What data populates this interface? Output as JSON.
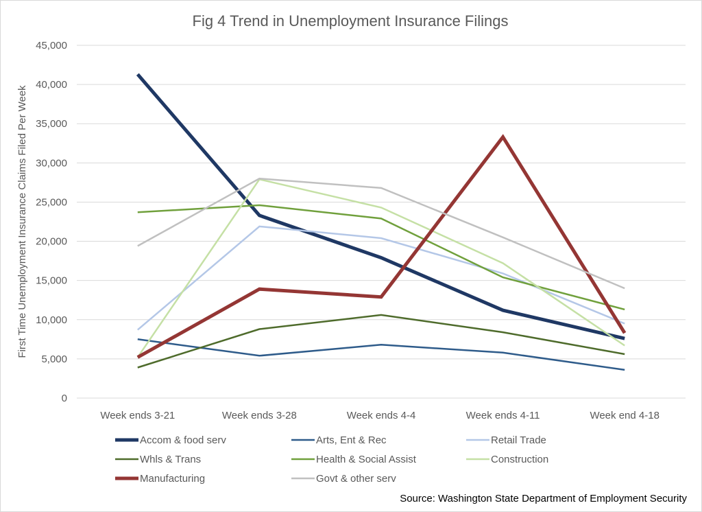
{
  "chart_data": {
    "type": "line",
    "title": "Fig 4 Trend in Unemployment Insurance Filings",
    "xlabel": "",
    "ylabel": "First Time Unemployment Insurance Claims Filed Per Week",
    "categories": [
      "Week ends 3-21",
      "Week ends 3-28",
      "Week ends 4-4",
      "Week ends 4-11",
      "Week end 4-18"
    ],
    "ylim": [
      0,
      45000
    ],
    "yticks": [
      0,
      5000,
      10000,
      15000,
      20000,
      25000,
      30000,
      35000,
      40000,
      45000
    ],
    "ytick_labels": [
      "0",
      "5,000",
      "10,000",
      "15,000",
      "20,000",
      "25,000",
      "30,000",
      "35,000",
      "40,000",
      "45,000"
    ],
    "grid": true,
    "legend_position": "bottom",
    "series": [
      {
        "name": "Accom & food serv",
        "color": "#1f3864",
        "width": 5,
        "values": [
          41300,
          23300,
          17900,
          11200,
          7600
        ]
      },
      {
        "name": "Arts, Ent & Rec",
        "color": "#2e5b8a",
        "width": 2.5,
        "values": [
          7500,
          5400,
          6800,
          5800,
          3600
        ]
      },
      {
        "name": "Retail Trade",
        "color": "#b4c7e7",
        "width": 2.5,
        "values": [
          8700,
          21900,
          20400,
          15900,
          9500
        ]
      },
      {
        "name": "Whls & Trans",
        "color": "#4e6b2b",
        "width": 2.5,
        "values": [
          3900,
          8800,
          10600,
          8400,
          5600
        ]
      },
      {
        "name": "Health & Social Assist",
        "color": "#70a03c",
        "width": 2.5,
        "values": [
          23700,
          24600,
          22900,
          15400,
          11300
        ]
      },
      {
        "name": "Construction",
        "color": "#c5e0a5",
        "width": 2.5,
        "values": [
          5200,
          27900,
          24300,
          17200,
          6700
        ]
      },
      {
        "name": "Manufacturing",
        "color": "#943634",
        "width": 5,
        "values": [
          5200,
          13900,
          12900,
          33300,
          8300
        ]
      },
      {
        "name": "Govt & other serv",
        "color": "#c0c0c0",
        "width": 2.5,
        "values": [
          19400,
          28000,
          26800,
          20500,
          14000
        ]
      }
    ]
  },
  "source": "Source: Washington State Department of Employment Security"
}
